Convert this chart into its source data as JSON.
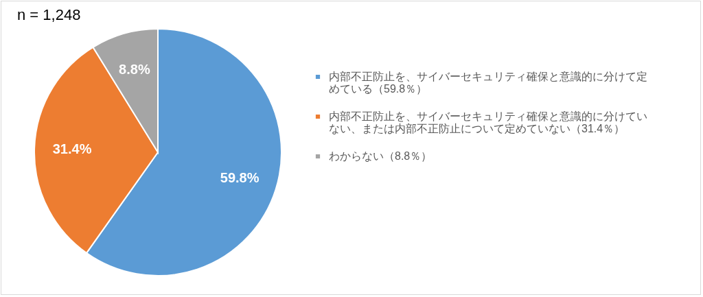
{
  "chart_data": {
    "type": "pie",
    "title": "n = 1,248",
    "categories": [
      "内部不正防止を、サイバーセキュリティ確保と意識的に分けて定めている（59.8％）",
      "内部不正防止を、サイバーセキュリティ確保と意識的に分けていない、または内部不正防止について定めていない（31.4％）",
      "わからない（8.8％）"
    ],
    "values": [
      59.8,
      31.4,
      8.8
    ],
    "colors": [
      "#5b9bd5",
      "#ed7d31",
      "#a5a5a5"
    ],
    "value_labels": [
      "59.8%",
      "31.4%",
      "8.8%"
    ],
    "legend": "right"
  }
}
